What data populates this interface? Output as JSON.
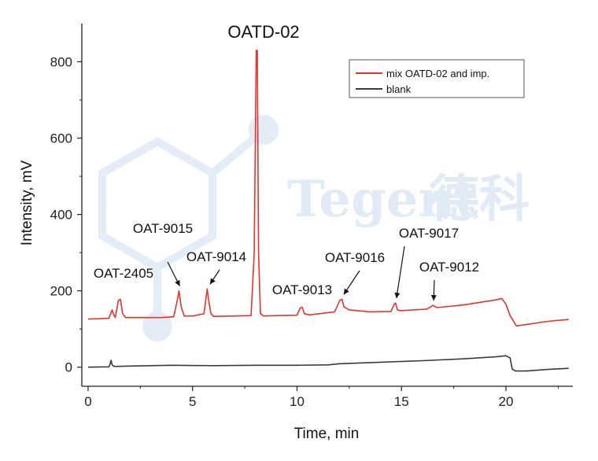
{
  "chart_data": {
    "type": "line",
    "title": "",
    "xlabel": "Time, min",
    "ylabel": "Intensity, mV",
    "xlim": [
      -0.3,
      23.2
    ],
    "ylim": [
      -50,
      900
    ],
    "x_ticks": [
      0,
      5,
      10,
      15,
      20
    ],
    "y_ticks": [
      0,
      200,
      400,
      600,
      800
    ],
    "legend_position": "top-right",
    "series": [
      {
        "name": "mix OATD-02 and imp.",
        "color": "#e8332c",
        "x": [
          0,
          1.0,
          1.08,
          1.15,
          1.22,
          1.3,
          1.45,
          1.55,
          1.65,
          1.8,
          3.5,
          4.1,
          4.25,
          4.35,
          4.45,
          4.6,
          5.0,
          5.55,
          5.7,
          5.78,
          5.88,
          6.0,
          7.0,
          7.8,
          7.95,
          8.05,
          8.1,
          8.16,
          8.25,
          8.4,
          9.0,
          10.0,
          10.15,
          10.25,
          10.35,
          10.6,
          11.8,
          12.05,
          12.15,
          12.25,
          12.5,
          13.5,
          14.5,
          14.65,
          14.72,
          14.8,
          14.95,
          16.2,
          16.4,
          16.5,
          16.7,
          18.0,
          19.0,
          19.5,
          19.8,
          20.0,
          20.2,
          20.5,
          21.0,
          22.0,
          23.0
        ],
        "y": [
          126,
          128,
          140,
          150,
          138,
          130,
          175,
          178,
          140,
          130,
          130,
          132,
          170,
          200,
          160,
          134,
          134,
          140,
          205,
          172,
          140,
          133,
          134,
          135,
          300,
          830,
          830,
          300,
          140,
          134,
          135,
          136,
          155,
          157,
          140,
          137,
          145,
          175,
          178,
          158,
          150,
          145,
          146,
          165,
          168,
          150,
          148,
          152,
          158,
          162,
          156,
          163,
          172,
          176,
          180,
          165,
          135,
          108,
          112,
          120,
          125
        ]
      },
      {
        "name": "blank",
        "color": "#3a3a3a",
        "x": [
          0,
          1.0,
          1.05,
          1.1,
          1.15,
          1.25,
          2.0,
          4.0,
          6.0,
          8.0,
          10.0,
          11.5,
          12.0,
          14.0,
          16.0,
          18.0,
          19.5,
          20.0,
          20.2,
          20.3,
          20.45,
          21.0,
          22.0,
          23.0
        ],
        "y": [
          0,
          1,
          8,
          18,
          6,
          2,
          3,
          5,
          4,
          5,
          5,
          6,
          9,
          13,
          17,
          22,
          27,
          30,
          24,
          -5,
          -10,
          -10,
          -6,
          -3
        ]
      }
    ],
    "annotations": [
      {
        "text": "OATD-02",
        "x": 8.1
      },
      {
        "text": "OAT-2405",
        "x": 1.5
      },
      {
        "text": "OAT-9015",
        "x": 4.35
      },
      {
        "text": "OAT-9014",
        "x": 5.8
      },
      {
        "text": "OAT-9013",
        "x": 10.25
      },
      {
        "text": "OAT-9016",
        "x": 12.2
      },
      {
        "text": "OAT-9017",
        "x": 14.72
      },
      {
        "text": "OAT-9012",
        "x": 16.5
      }
    ]
  },
  "watermark": {
    "text": "Tegent",
    "cn_text": "德科"
  }
}
